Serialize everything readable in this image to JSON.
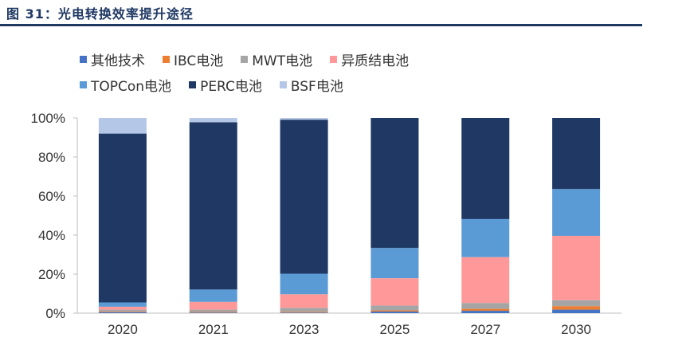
{
  "figure": {
    "title": "图 31：光电转换效率提升途径"
  },
  "chart_data": {
    "type": "bar",
    "stacked": true,
    "categories": [
      "2020",
      "2021",
      "2023",
      "2025",
      "2027",
      "2030"
    ],
    "ylim": [
      0,
      100
    ],
    "yticks": [
      "0%",
      "20%",
      "40%",
      "60%",
      "80%",
      "100%"
    ],
    "legend_placement": "top",
    "grid": false,
    "series": [
      {
        "name": "其他技术",
        "color": "#4472c4",
        "values": [
          0.5,
          0.3,
          0.3,
          0.8,
          1.2,
          1.8
        ]
      },
      {
        "name": "IBC电池",
        "color": "#ed7d31",
        "values": [
          0.3,
          0.3,
          0.4,
          0.6,
          1.0,
          1.8
        ]
      },
      {
        "name": "MWT电池",
        "color": "#a5a5a5",
        "values": [
          1.0,
          1.2,
          2.0,
          2.5,
          3.0,
          3.0
        ]
      },
      {
        "name": "异质结电池",
        "color": "#ff9999",
        "values": [
          1.5,
          4.0,
          7.0,
          14.0,
          23.5,
          33.0
        ]
      },
      {
        "name": "TOPCon电池",
        "color": "#5b9bd5",
        "values": [
          2.2,
          6.3,
          10.5,
          15.5,
          19.5,
          24.0
        ]
      },
      {
        "name": "PERC电池",
        "color": "#1f3864",
        "values": [
          86.5,
          85.7,
          78.9,
          66.6,
          51.8,
          36.4
        ]
      },
      {
        "name": "BSF电池",
        "color": "#b4c7e7",
        "values": [
          8.0,
          2.2,
          0.9,
          0.0,
          0.0,
          0.0
        ]
      }
    ]
  }
}
